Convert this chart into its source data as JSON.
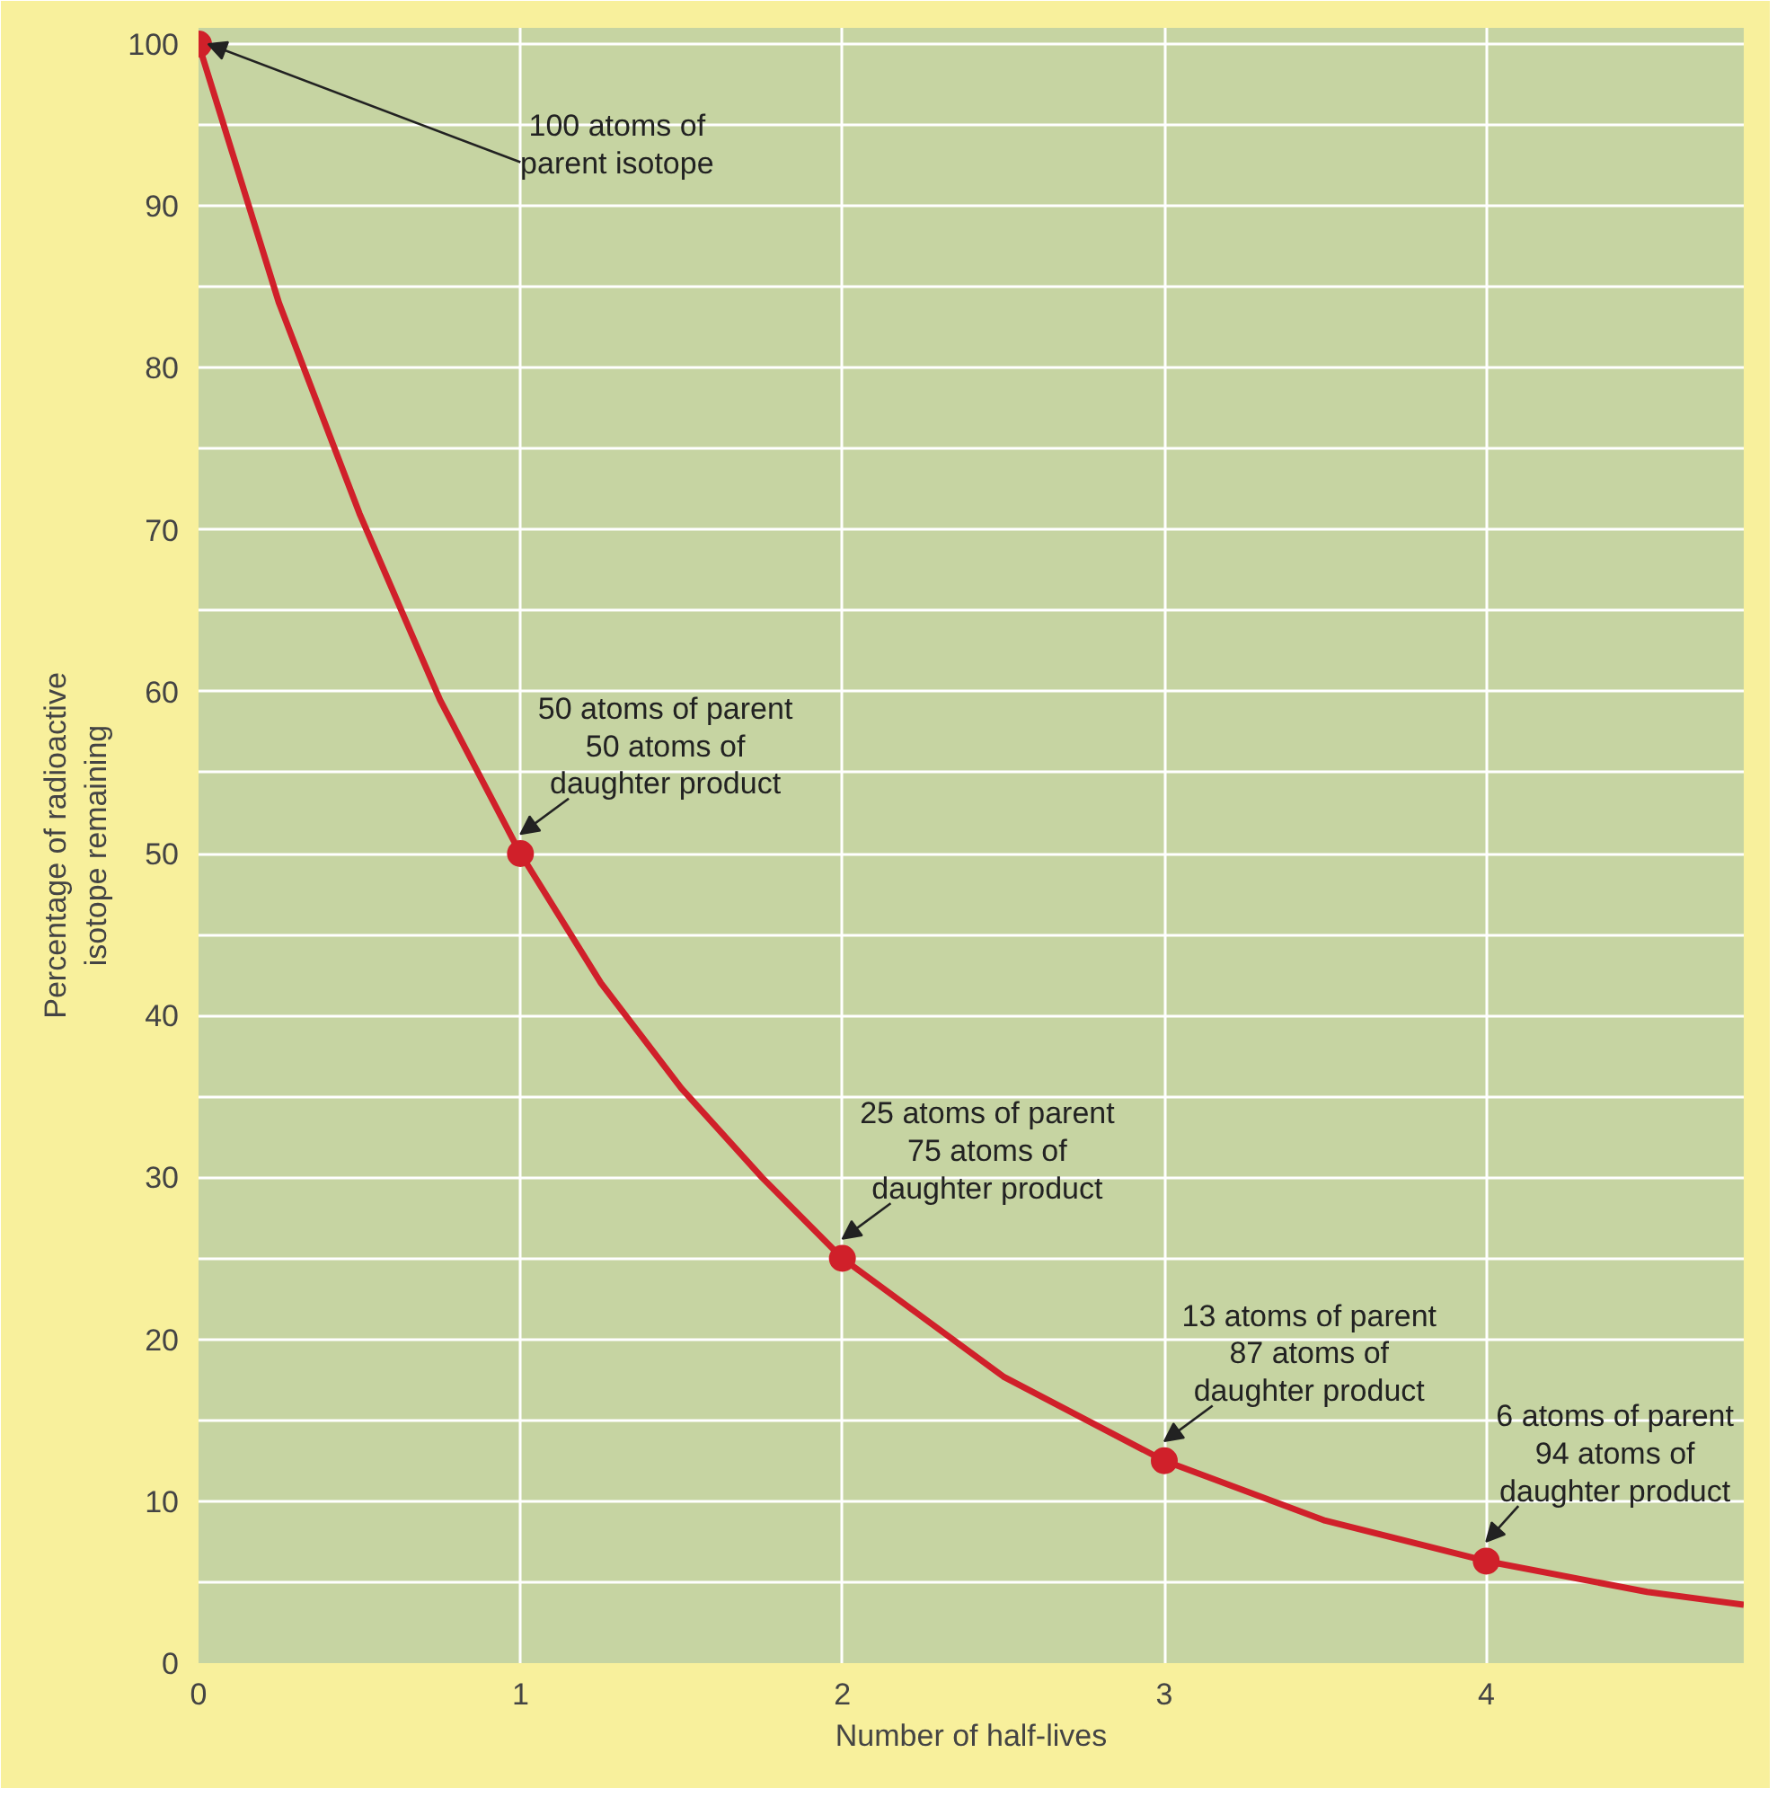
{
  "chart_data": {
    "type": "line",
    "xlabel": "Number of half-lives",
    "ylabel": "Percentage of radioactive\nisotope remaining",
    "xlim": [
      0,
      4.8
    ],
    "ylim": [
      0,
      101
    ],
    "xticks": [
      0,
      1,
      2,
      3,
      4
    ],
    "yticks": [
      0,
      {
        "value": 5,
        "label": null
      },
      10,
      {
        "value": 15,
        "label": null
      },
      20,
      {
        "value": 25,
        "label": null
      },
      30,
      {
        "value": 35,
        "label": null
      },
      40,
      {
        "value": 45,
        "label": null
      },
      50,
      {
        "value": 55,
        "label": null
      },
      60,
      {
        "value": 65,
        "label": null
      },
      70,
      {
        "value": 75,
        "label": null
      },
      80,
      {
        "value": 85,
        "label": null
      },
      90,
      {
        "value": 95,
        "label": null
      },
      100
    ],
    "grid": true,
    "line_style": "solid",
    "series": [
      {
        "marker": "none",
        "color": "#d0202a",
        "x": [
          0,
          0.25,
          0.5,
          0.75,
          1,
          1.25,
          1.5,
          1.75,
          2,
          2.5,
          3,
          3.5,
          4,
          4.5,
          4.8
        ],
        "values": [
          100,
          84,
          71,
          59.5,
          50,
          42,
          35.5,
          30,
          25,
          17.7,
          12.5,
          8.8,
          6.3,
          4.4,
          3.6
        ]
      },
      {
        "type": "scatter",
        "marker": "circle",
        "color": "#d0202a",
        "x": [
          0,
          1,
          2,
          3,
          4
        ],
        "values": [
          100,
          50,
          25,
          12.5,
          6.3
        ]
      }
    ],
    "annotations": [
      {
        "text": "100 atoms of\nparent isotope",
        "x": 0,
        "y": 100
      },
      {
        "text": "50 atoms of parent\n50 atoms of\ndaughter product",
        "x": 1,
        "y": 50
      },
      {
        "text": "25 atoms of parent\n75 atoms of\ndaughter product",
        "x": 2,
        "y": 25
      },
      {
        "text": "13 atoms of parent\n87 atoms of\ndaughter product",
        "x": 3,
        "y": 12.5
      },
      {
        "text": "6 atoms of parent\n94 atoms of\ndaughter product",
        "x": 4,
        "y": 6.3
      }
    ]
  }
}
